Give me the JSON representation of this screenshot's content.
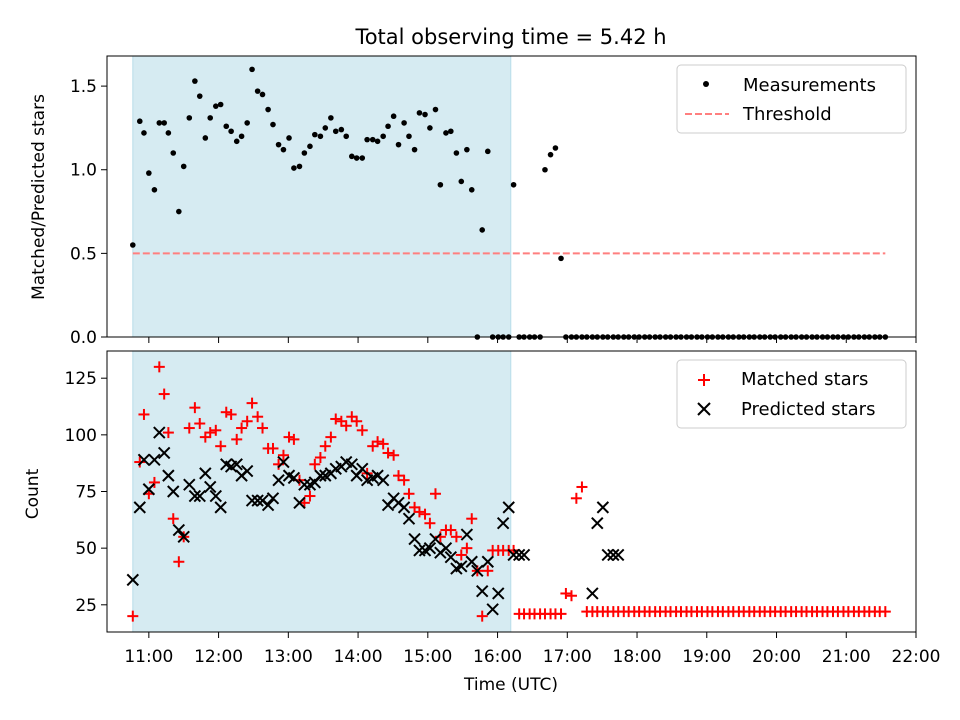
{
  "chart_data": [
    {
      "type": "scatter",
      "title": "Total observing time = 5.42 h",
      "xlabel": "",
      "ylabel": "Matched/Predicted stars",
      "xlim_hours": [
        10.4,
        22.0
      ],
      "ylim": [
        0,
        1.68
      ],
      "y_ticks": [
        0.0,
        0.5,
        1.0,
        1.5
      ],
      "y_tick_labels": [
        "0.0",
        "0.5",
        "1.0",
        "1.5"
      ],
      "x_tick_labels_shown": false,
      "legend_position": "top-right",
      "shaded_span_hours": [
        10.77,
        16.19
      ],
      "shaded_color": "#add8e6",
      "series": [
        {
          "name": "Measurements",
          "marker": "dot",
          "color": "#000000",
          "x": [
            10.77,
            10.87,
            10.93,
            11.0,
            11.08,
            11.15,
            11.22,
            11.28,
            11.35,
            11.43,
            11.5,
            11.58,
            11.66,
            11.73,
            11.81,
            11.88,
            11.96,
            12.03,
            12.11,
            12.18,
            12.26,
            12.33,
            12.41,
            12.48,
            12.56,
            12.63,
            12.71,
            12.78,
            12.86,
            12.93,
            13.01,
            13.08,
            13.16,
            13.23,
            13.31,
            13.38,
            13.46,
            13.53,
            13.61,
            13.68,
            13.76,
            13.83,
            13.91,
            13.98,
            14.06,
            14.13,
            14.21,
            14.28,
            14.36,
            14.43,
            14.51,
            14.58,
            14.66,
            14.73,
            14.81,
            14.88,
            14.96,
            15.03,
            15.11,
            15.18,
            15.26,
            15.33,
            15.41,
            15.48,
            15.56,
            15.63,
            15.71,
            15.78,
            15.86,
            15.93,
            16.01,
            16.08,
            16.16,
            16.23,
            16.31,
            16.38,
            16.46,
            16.53,
            16.61,
            16.68,
            16.76,
            16.83,
            16.91,
            16.98,
            17.06,
            17.13,
            17.21,
            17.28,
            17.36,
            17.43,
            17.51,
            17.58,
            17.66,
            17.73,
            17.81,
            17.88,
            17.96,
            18.03,
            18.11,
            18.18,
            18.26,
            18.33,
            18.41,
            18.48,
            18.56,
            18.63,
            18.71,
            18.78,
            18.86,
            18.93,
            19.01,
            19.08,
            19.16,
            19.23,
            19.31,
            19.38,
            19.46,
            19.53,
            19.61,
            19.68,
            19.76,
            19.83,
            19.91,
            19.98,
            20.06,
            20.13,
            20.21,
            20.28,
            20.36,
            20.43,
            20.51,
            20.58,
            20.66,
            20.73,
            20.81,
            20.88,
            20.96,
            21.03,
            21.11,
            21.18,
            21.26,
            21.33,
            21.41,
            21.48,
            21.56
          ],
          "y": [
            0.55,
            1.29,
            1.22,
            0.98,
            0.88,
            1.28,
            1.28,
            1.22,
            1.1,
            0.75,
            1.02,
            1.31,
            1.53,
            1.44,
            1.19,
            1.31,
            1.38,
            1.39,
            1.26,
            1.23,
            1.17,
            1.2,
            1.28,
            1.6,
            1.47,
            1.45,
            1.36,
            1.27,
            1.15,
            1.12,
            1.19,
            1.01,
            1.02,
            1.1,
            1.14,
            1.21,
            1.2,
            1.25,
            1.31,
            1.23,
            1.24,
            1.2,
            1.08,
            1.07,
            1.07,
            1.18,
            1.18,
            1.17,
            1.2,
            1.26,
            1.32,
            1.15,
            1.28,
            1.2,
            1.12,
            1.34,
            1.33,
            1.25,
            1.36,
            0.91,
            1.22,
            1.23,
            1.1,
            0.93,
            1.12,
            0.88,
            0.0,
            0.64,
            1.11,
            0.0,
            0.0,
            0.0,
            0.0,
            0.91,
            0.0,
            0.0,
            0.0,
            0.0,
            0.0,
            1.0,
            1.09,
            1.13,
            0.47,
            0.0,
            0.0,
            0.0,
            0.0,
            0.0,
            0.0,
            0.0,
            0.0,
            0.0,
            0.0,
            0.0,
            0.0,
            0.0,
            0.0,
            0.0,
            0.0,
            0.0,
            0.0,
            0.0,
            0.0,
            0.0,
            0.0,
            0.0,
            0.0,
            0.0,
            0.0,
            0.0,
            0.0,
            0.0,
            0.0,
            0.0,
            0.0,
            0.0,
            0.0,
            0.0,
            0.0,
            0.0,
            0.0,
            0.0,
            0.0,
            0.0,
            0.0,
            0.0,
            0.0,
            0.0,
            0.0,
            0.0,
            0.0,
            0.0,
            0.0,
            0.0,
            0.0,
            0.0,
            0.0,
            0.0,
            0.0,
            0.0,
            0.0,
            0.0,
            0.0,
            0.0,
            0.0
          ]
        },
        {
          "name": "Threshold",
          "marker": "dashed-line",
          "color": "#ff7f7f",
          "x": [
            10.77,
            21.56
          ],
          "y": [
            0.5,
            0.5
          ]
        }
      ]
    },
    {
      "type": "scatter",
      "title": "",
      "xlabel": "Time (UTC)",
      "ylabel": "Count",
      "xlim_hours": [
        10.4,
        22.0
      ],
      "ylim": [
        13,
        137
      ],
      "y_ticks": [
        25,
        50,
        75,
        100,
        125
      ],
      "y_tick_labels": [
        "25",
        "50",
        "75",
        "100",
        "125"
      ],
      "x_ticks_hours": [
        11,
        12,
        13,
        14,
        15,
        16,
        17,
        18,
        19,
        20,
        21,
        22
      ],
      "x_tick_labels": [
        "11:00",
        "12:00",
        "13:00",
        "14:00",
        "15:00",
        "16:00",
        "17:00",
        "18:00",
        "19:00",
        "20:00",
        "21:00",
        "22:00"
      ],
      "legend_position": "top-right",
      "shaded_span_hours": [
        10.77,
        16.19
      ],
      "shaded_color": "#add8e6",
      "series": [
        {
          "name": "Matched stars",
          "marker": "plus",
          "color": "#ff0000",
          "x": [
            10.77,
            10.87,
            10.93,
            11.0,
            11.08,
            11.15,
            11.22,
            11.28,
            11.35,
            11.43,
            11.5,
            11.58,
            11.66,
            11.73,
            11.81,
            11.88,
            11.96,
            12.03,
            12.11,
            12.18,
            12.26,
            12.33,
            12.41,
            12.48,
            12.56,
            12.63,
            12.71,
            12.78,
            12.86,
            12.93,
            13.01,
            13.08,
            13.16,
            13.23,
            13.31,
            13.38,
            13.46,
            13.53,
            13.61,
            13.68,
            13.76,
            13.83,
            13.91,
            13.98,
            14.06,
            14.13,
            14.21,
            14.28,
            14.36,
            14.43,
            14.51,
            14.58,
            14.66,
            14.73,
            14.81,
            14.88,
            14.96,
            15.03,
            15.11,
            15.18,
            15.26,
            15.33,
            15.41,
            15.48,
            15.56,
            15.63,
            15.71,
            15.78,
            15.86,
            15.93,
            16.01,
            16.08,
            16.16,
            16.23,
            16.31,
            16.38,
            16.46,
            16.53,
            16.61,
            16.68,
            16.76,
            16.83,
            16.91,
            16.98,
            17.06,
            17.13,
            17.21,
            17.28,
            17.36,
            17.43,
            17.51,
            17.58,
            17.66,
            17.73,
            17.81,
            17.88,
            17.96,
            18.03,
            18.11,
            18.18,
            18.26,
            18.33,
            18.41,
            18.48,
            18.56,
            18.63,
            18.71,
            18.78,
            18.86,
            18.93,
            19.01,
            19.08,
            19.16,
            19.23,
            19.31,
            19.38,
            19.46,
            19.53,
            19.61,
            19.68,
            19.76,
            19.83,
            19.91,
            19.98,
            20.06,
            20.13,
            20.21,
            20.28,
            20.36,
            20.43,
            20.51,
            20.58,
            20.66,
            20.73,
            20.81,
            20.88,
            20.96,
            21.03,
            21.11,
            21.18,
            21.26,
            21.33,
            21.41,
            21.48,
            21.56
          ],
          "y": [
            20,
            88,
            109,
            74,
            79,
            130,
            118,
            101,
            63,
            44,
            55,
            103,
            112,
            105,
            99,
            101,
            102,
            95,
            110,
            109,
            98,
            103,
            106,
            114,
            108,
            103,
            94,
            94,
            87,
            91,
            99,
            98,
            80,
            70,
            73,
            87,
            90,
            95,
            99,
            107,
            106,
            104,
            108,
            106,
            102,
            83,
            95,
            97,
            96,
            92,
            91,
            82,
            80,
            74,
            68,
            66,
            65,
            61,
            74,
            55,
            58,
            58,
            55,
            47,
            50,
            63,
            40,
            20,
            40,
            49,
            49,
            49,
            49,
            49,
            21,
            21,
            21,
            21,
            21,
            21,
            21,
            21,
            21,
            30,
            29,
            72,
            77,
            22,
            22,
            22,
            22,
            22,
            22,
            22,
            22,
            22,
            22,
            22,
            22,
            22,
            22,
            22,
            22,
            22,
            22,
            22,
            22,
            22,
            22,
            22,
            22,
            22,
            22,
            22,
            22,
            22,
            22,
            22,
            22,
            22,
            22,
            22,
            22,
            22,
            22,
            22,
            22,
            22,
            22,
            22,
            22,
            22,
            22,
            22,
            22,
            22,
            22,
            22,
            22,
            22,
            22,
            22,
            22,
            22,
            22
          ]
        },
        {
          "name": "Predicted stars",
          "marker": "cross",
          "color": "#000000",
          "x": [
            10.77,
            10.87,
            10.93,
            11.0,
            11.08,
            11.15,
            11.22,
            11.28,
            11.35,
            11.43,
            11.5,
            11.58,
            11.66,
            11.73,
            11.81,
            11.88,
            11.96,
            12.03,
            12.11,
            12.18,
            12.26,
            12.33,
            12.41,
            12.48,
            12.56,
            12.63,
            12.71,
            12.78,
            12.86,
            12.93,
            13.01,
            13.08,
            13.16,
            13.23,
            13.31,
            13.38,
            13.46,
            13.53,
            13.61,
            13.68,
            13.76,
            13.83,
            13.91,
            13.98,
            14.06,
            14.13,
            14.21,
            14.28,
            14.36,
            14.43,
            14.51,
            14.58,
            14.66,
            14.73,
            14.81,
            14.88,
            14.96,
            15.03,
            15.11,
            15.18,
            15.26,
            15.33,
            15.41,
            15.48,
            15.56,
            15.63,
            15.71,
            15.78,
            15.86,
            15.93,
            16.01,
            16.08,
            16.16,
            16.23,
            16.31,
            16.38,
            17.36,
            17.43,
            17.51,
            17.58,
            17.66,
            17.73
          ],
          "y": [
            36,
            68,
            89,
            76,
            89,
            101,
            92,
            82,
            75,
            58,
            55,
            78,
            73,
            73,
            83,
            77,
            73,
            68,
            87,
            86,
            87,
            82,
            84,
            71,
            71,
            71,
            69,
            72,
            80,
            88,
            82,
            81,
            70,
            78,
            78,
            79,
            82,
            82,
            83,
            85,
            86,
            88,
            87,
            82,
            85,
            80,
            81,
            82,
            80,
            69,
            72,
            70,
            68,
            63,
            54,
            49,
            49,
            50,
            54,
            48,
            50,
            46,
            41,
            42,
            56,
            44,
            40,
            31,
            44,
            23,
            30,
            61,
            68,
            47,
            47,
            47,
            30,
            61,
            68,
            47,
            47,
            47
          ]
        }
      ]
    }
  ]
}
